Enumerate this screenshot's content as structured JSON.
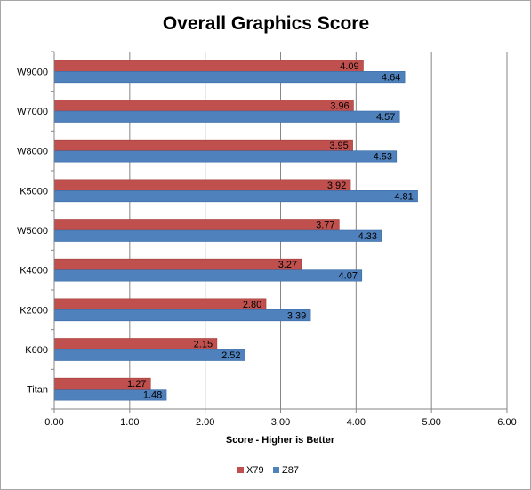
{
  "chart_data": {
    "type": "bar",
    "orientation": "horizontal",
    "title": "Overall Graphics Score",
    "xlabel": "Score - Higher is Better",
    "ylabel": "",
    "xlim": [
      0,
      6
    ],
    "x_ticks": [
      "0.00",
      "1.00",
      "2.00",
      "3.00",
      "4.00",
      "5.00",
      "6.00"
    ],
    "grid": "vertical gridlines",
    "legend": "bottom",
    "categories": [
      "W9000",
      "W7000",
      "W8000",
      "K5000",
      "W5000",
      "K4000",
      "K2000",
      "K600",
      "Titan"
    ],
    "series": [
      {
        "name": "X79",
        "color": "#c0504d",
        "values": [
          4.09,
          3.96,
          3.95,
          3.92,
          3.77,
          3.27,
          2.8,
          2.15,
          1.27
        ],
        "labels": [
          "4.09",
          "3.96",
          "3.95",
          "3.92",
          "3.77",
          "3.27",
          "2.80",
          "2.15",
          "1.27"
        ]
      },
      {
        "name": "Z87",
        "color": "#4f81bd",
        "values": [
          4.64,
          4.57,
          4.53,
          4.81,
          4.33,
          4.07,
          3.39,
          2.52,
          1.48
        ],
        "labels": [
          "4.64",
          "4.57",
          "4.53",
          "4.81",
          "4.33",
          "4.07",
          "3.39",
          "2.52",
          "1.48"
        ]
      }
    ]
  }
}
